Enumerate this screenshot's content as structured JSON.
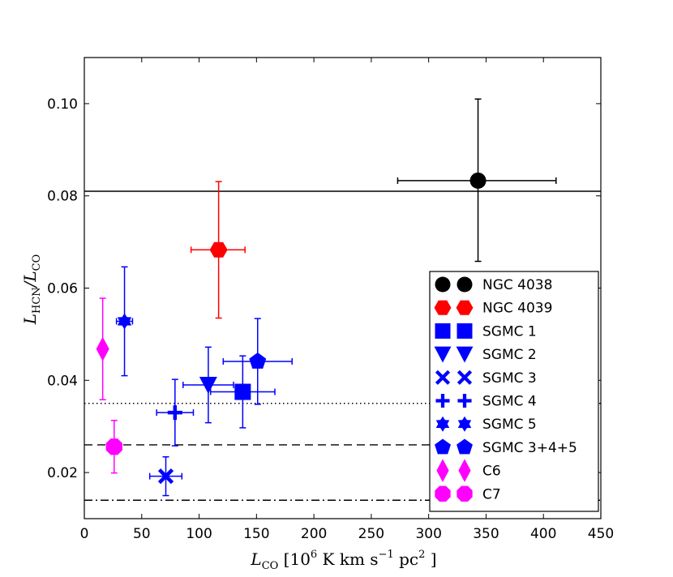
{
  "chart_data": {
    "type": "scatter",
    "title": "",
    "xlabel": "L_CO [10^6 K km s^-1 pc^2 ]",
    "xlabel_parts": {
      "main": "L",
      "sub": "CO",
      "units": " [10",
      "exp1": "6",
      "units2": " K km s",
      "exp2": "−1",
      "units3": " pc",
      "exp3": "2",
      "close": " ]"
    },
    "ylabel": "L_HCN/L_CO",
    "ylabel_parts": {
      "main": "L",
      "sub": "HCN",
      "slash": "/L",
      "sub2": "CO"
    },
    "xlim": [
      0,
      450
    ],
    "ylim": [
      0.01,
      0.11
    ],
    "xticks": [
      0,
      50,
      100,
      150,
      200,
      250,
      300,
      350,
      400,
      450
    ],
    "yticks": [
      0.02,
      0.04,
      0.06,
      0.08,
      0.1
    ],
    "ytick_labels": [
      "0.02",
      "0.04",
      "0.06",
      "0.08",
      "0.10"
    ],
    "reference_lines": [
      {
        "y": 0.081,
        "style": "solid"
      },
      {
        "y": 0.035,
        "style": "dotted"
      },
      {
        "y": 0.026,
        "style": "dashed"
      },
      {
        "y": 0.014,
        "style": "dashdot"
      }
    ],
    "series": [
      {
        "name": "NGC 4038",
        "color": "#000000",
        "marker": "circle",
        "x": 343,
        "y": 0.0833,
        "xerr": [
          70,
          68
        ],
        "yerr": [
          0.0175,
          0.0177
        ]
      },
      {
        "name": "NGC 4039",
        "color": "#ff0000",
        "marker": "hexagon",
        "x": 117,
        "y": 0.0683,
        "xerr": [
          24,
          23
        ],
        "yerr": [
          0.0148,
          0.0148
        ]
      },
      {
        "name": "SGMC 1",
        "color": "#0000ff",
        "marker": "square",
        "x": 138,
        "y": 0.0375,
        "xerr": [
          28,
          28
        ],
        "yerr": [
          0.0078,
          0.0078
        ]
      },
      {
        "name": "SGMC 2",
        "color": "#0000ff",
        "marker": "triangle-down",
        "x": 108,
        "y": 0.039,
        "xerr": [
          22,
          22
        ],
        "yerr": [
          0.0082,
          0.0082
        ]
      },
      {
        "name": "SGMC 3",
        "color": "#0000ff",
        "marker": "x",
        "x": 71,
        "y": 0.0192,
        "xerr": [
          14,
          14
        ],
        "yerr": [
          0.0042,
          0.0042
        ]
      },
      {
        "name": "SGMC 4",
        "color": "#0000ff",
        "marker": "plus",
        "x": 79,
        "y": 0.033,
        "xerr": [
          16,
          16
        ],
        "yerr": [
          0.0072,
          0.0072
        ]
      },
      {
        "name": "SGMC 5",
        "color": "#0000ff",
        "marker": "star",
        "x": 35,
        "y": 0.0528,
        "xerr": [
          7,
          7
        ],
        "yerr": [
          0.0118,
          0.0118
        ]
      },
      {
        "name": "SGMC 3+4+5",
        "color": "#0000ff",
        "marker": "pentagon",
        "x": 151,
        "y": 0.0441,
        "xerr": [
          30,
          30
        ],
        "yerr": [
          0.0093,
          0.0093
        ]
      },
      {
        "name": "C6",
        "color": "#ff00ff",
        "marker": "diamond",
        "x": 16,
        "y": 0.0468,
        "xerr": [
          0,
          0
        ],
        "yerr": [
          0.011,
          0.011
        ]
      },
      {
        "name": "C7",
        "color": "#ff00ff",
        "marker": "octagon",
        "x": 26,
        "y": 0.0256,
        "xerr": [
          0,
          0
        ],
        "yerr": [
          0.0057,
          0.0057
        ]
      }
    ],
    "legend_location": "lower-right"
  }
}
